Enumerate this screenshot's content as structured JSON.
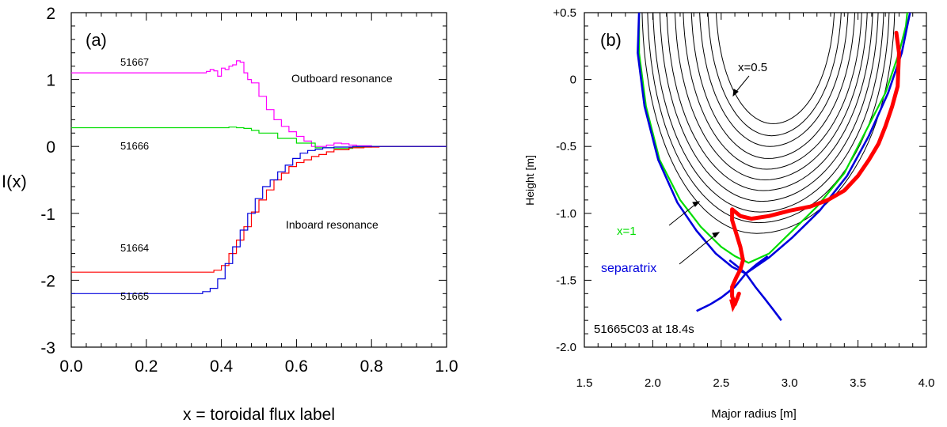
{
  "chart_data": [
    {
      "type": "line",
      "panel_label": "(a)",
      "xlabel": "x = toroidal flux label",
      "ylabel": "I(x)",
      "xlim": [
        0.0,
        1.0
      ],
      "ylim": [
        -3,
        2
      ],
      "xticks": [
        "0.0",
        "0.2",
        "0.4",
        "0.6",
        "0.8",
        "1.0"
      ],
      "yticks": [
        "-3",
        "-2",
        "-1",
        "0",
        "1",
        "2"
      ],
      "grid": false,
      "annotations": [
        "Outboard resonance",
        "Inboard resonance"
      ],
      "series": [
        {
          "name": "51667",
          "color": "#ff00ff",
          "x": [
            0.0,
            0.35,
            0.36,
            0.37,
            0.38,
            0.39,
            0.4,
            0.41,
            0.42,
            0.43,
            0.44,
            0.45,
            0.46,
            0.47,
            0.48,
            0.5,
            0.52,
            0.54,
            0.56,
            0.58,
            0.6,
            0.62,
            0.64,
            0.66,
            0.68,
            0.7,
            0.72,
            0.74,
            0.76,
            0.8,
            0.85,
            1.0
          ],
          "y": [
            1.1,
            1.1,
            1.12,
            1.15,
            1.13,
            1.05,
            1.17,
            1.15,
            1.2,
            1.22,
            1.28,
            1.26,
            1.1,
            1.0,
            0.95,
            0.75,
            0.55,
            0.4,
            0.3,
            0.22,
            0.15,
            0.08,
            0.0,
            0.0,
            0.02,
            0.05,
            0.04,
            0.02,
            0.01,
            0.0,
            0.0,
            0.0
          ]
        },
        {
          "name": "51666",
          "color": "#00dd00",
          "x": [
            0.0,
            0.35,
            0.4,
            0.42,
            0.44,
            0.46,
            0.48,
            0.5,
            0.55,
            0.6,
            0.65,
            0.7,
            0.75,
            0.8,
            1.0
          ],
          "y": [
            0.28,
            0.28,
            0.28,
            0.29,
            0.28,
            0.27,
            0.24,
            0.2,
            0.12,
            0.05,
            -0.02,
            -0.03,
            -0.01,
            0.0,
            0.0
          ]
        },
        {
          "name": "51664",
          "color": "#ff0000",
          "x": [
            0.0,
            0.35,
            0.38,
            0.4,
            0.42,
            0.44,
            0.46,
            0.48,
            0.5,
            0.52,
            0.54,
            0.56,
            0.58,
            0.6,
            0.62,
            0.64,
            0.66,
            0.68,
            0.7,
            0.74,
            0.78,
            0.82,
            0.9,
            1.0
          ],
          "y": [
            -1.88,
            -1.88,
            -1.85,
            -1.78,
            -1.6,
            -1.4,
            -1.2,
            -0.98,
            -0.8,
            -0.65,
            -0.5,
            -0.4,
            -0.3,
            -0.24,
            -0.2,
            -0.15,
            -0.12,
            -0.08,
            -0.05,
            -0.02,
            -0.01,
            0.0,
            0.0,
            0.0
          ]
        },
        {
          "name": "51665",
          "color": "#0000dd",
          "x": [
            0.0,
            0.34,
            0.35,
            0.37,
            0.39,
            0.41,
            0.43,
            0.45,
            0.47,
            0.49,
            0.51,
            0.53,
            0.55,
            0.57,
            0.59,
            0.61,
            0.63,
            0.65,
            0.67,
            0.7,
            0.75,
            0.8,
            1.0
          ],
          "y": [
            -2.2,
            -2.2,
            -2.17,
            -2.12,
            -1.98,
            -1.75,
            -1.5,
            -1.25,
            -1.0,
            -0.78,
            -0.6,
            -0.5,
            -0.38,
            -0.28,
            -0.18,
            -0.1,
            -0.06,
            -0.04,
            -0.02,
            -0.01,
            0.0,
            0.0,
            0.0
          ]
        }
      ]
    },
    {
      "type": "line",
      "panel_label": "(b)",
      "xlabel": "Major radius [m]",
      "ylabel": "Height [m]",
      "xlim": [
        1.5,
        4.0
      ],
      "ylim": [
        -2.0,
        0.5
      ],
      "xticks": [
        "1.5",
        "2.0",
        "2.5",
        "3.0",
        "3.5",
        "4.0"
      ],
      "yticks": [
        "-2.0",
        "-1.5",
        "-1.0",
        "-0.5",
        "0",
        "+0.5"
      ],
      "grid": false,
      "annotations": [
        "x=0.5",
        "x=1",
        "separatrix",
        "51665C03 at 18.4s"
      ],
      "flux_surfaces": {
        "color": "#000000",
        "count": 11,
        "center_R": 2.88,
        "top_Z": 0.5,
        "bottom_Z": [
          -0.33,
          -0.42,
          -0.5,
          -0.59,
          -0.67,
          -0.75,
          -0.83,
          -0.91,
          -0.99,
          -1.07,
          -1.15
        ],
        "left_R": [
          2.46,
          2.4,
          2.34,
          2.28,
          2.22,
          2.16,
          2.1,
          2.05,
          2.0,
          1.96,
          1.92
        ],
        "right_R": [
          3.33,
          3.38,
          3.43,
          3.48,
          3.53,
          3.57,
          3.61,
          3.65,
          3.69,
          3.73,
          3.77
        ]
      },
      "lcfs_x1": {
        "name": "x=1",
        "color": "#00dd00",
        "R": [
          1.9,
          1.9,
          1.95,
          2.05,
          2.2,
          2.35,
          2.5,
          2.6,
          2.7,
          2.85,
          3.0,
          3.2,
          3.4,
          3.55,
          3.7,
          3.8,
          3.85,
          3.86
        ],
        "Z": [
          0.5,
          0.2,
          -0.2,
          -0.6,
          -0.9,
          -1.1,
          -1.25,
          -1.32,
          -1.37,
          -1.3,
          -1.15,
          -0.95,
          -0.7,
          -0.4,
          -0.1,
          0.2,
          0.4,
          0.5
        ]
      },
      "separatrix": {
        "name": "separatrix",
        "color": "#0000dd",
        "R": [
          1.9,
          1.89,
          1.94,
          2.04,
          2.18,
          2.32,
          2.46,
          2.58,
          2.68,
          2.85,
          3.02,
          3.22,
          3.42,
          3.58,
          3.72,
          3.82,
          3.86,
          3.88
        ],
        "Z": [
          0.5,
          0.2,
          -0.2,
          -0.6,
          -0.92,
          -1.13,
          -1.3,
          -1.4,
          -1.45,
          -1.33,
          -1.18,
          -0.98,
          -0.72,
          -0.42,
          -0.1,
          0.2,
          0.4,
          0.5
        ],
        "legs": [
          {
            "R": [
              2.68,
              2.6,
              2.5,
              2.42,
              2.32
            ],
            "Z": [
              -1.45,
              -1.55,
              -1.63,
              -1.68,
              -1.73
            ]
          },
          {
            "R": [
              2.68,
              2.75,
              2.82,
              2.88,
              2.94
            ],
            "Z": [
              -1.45,
              -1.55,
              -1.64,
              -1.72,
              -1.8
            ]
          },
          {
            "R": [
              2.68,
              2.61,
              2.56
            ],
            "Z": [
              -1.45,
              -1.39,
              -1.35
            ]
          },
          {
            "R": [
              2.68,
              2.76,
              2.84
            ],
            "Z": [
              -1.45,
              -1.38,
              -1.32
            ]
          }
        ]
      },
      "resonance_path": {
        "color": "#ff0000",
        "R": [
          3.78,
          3.8,
          3.79,
          3.75,
          3.7,
          3.65,
          3.58,
          3.5,
          3.4,
          3.28,
          3.15,
          3.0,
          2.85,
          2.72,
          2.64,
          2.58,
          2.58,
          2.61,
          2.64,
          2.66,
          2.64,
          2.61,
          2.58,
          2.58,
          2.6,
          2.63
        ],
        "Z": [
          0.35,
          0.2,
          -0.05,
          -0.2,
          -0.35,
          -0.48,
          -0.6,
          -0.72,
          -0.83,
          -0.9,
          -0.95,
          -0.98,
          -1.02,
          -1.04,
          -1.02,
          -0.97,
          -1.05,
          -1.15,
          -1.25,
          -1.35,
          -1.42,
          -1.48,
          -1.55,
          -1.62,
          -1.68,
          -1.6
        ]
      }
    }
  ]
}
